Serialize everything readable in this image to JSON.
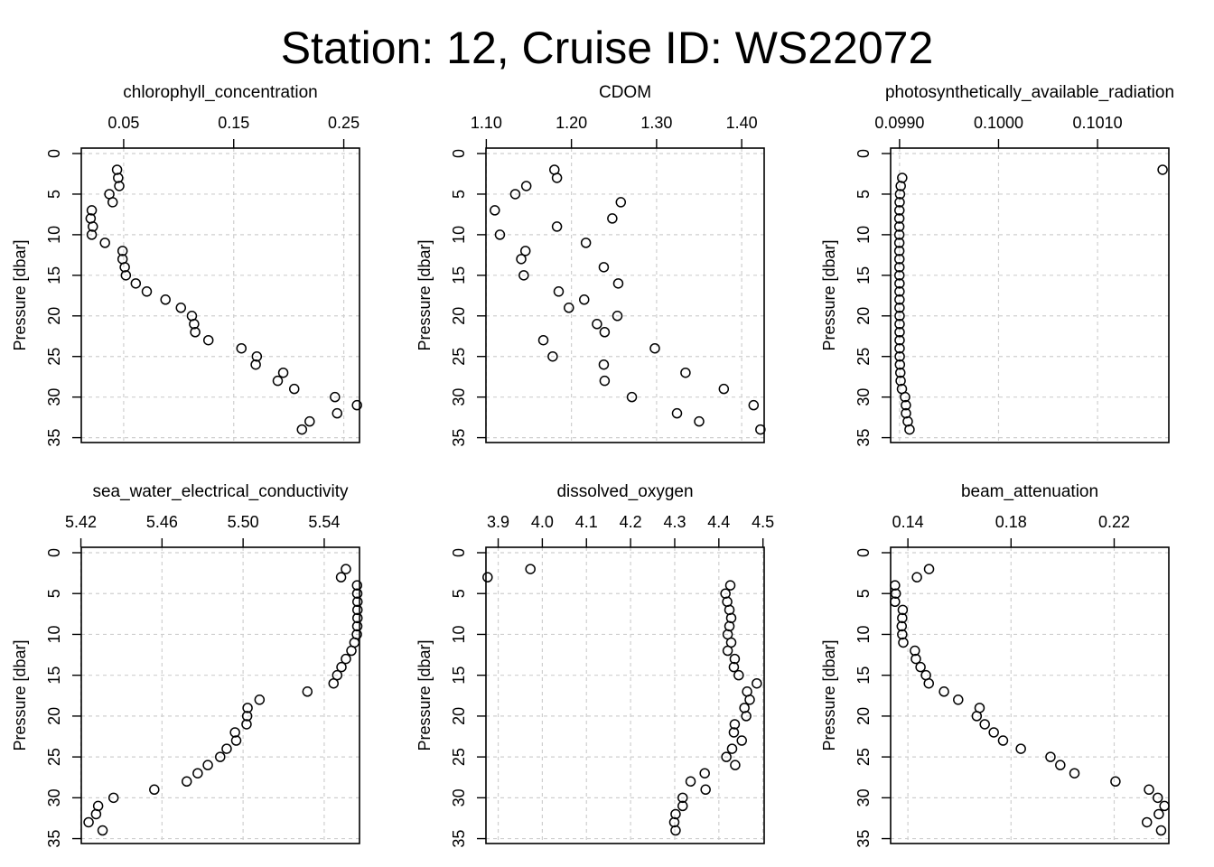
{
  "figure": {
    "title": "Station: 12, Cruise ID: WS22072"
  },
  "chart_data": [
    {
      "type": "scatter",
      "title": "chlorophyll_concentration",
      "xlabel": "",
      "ylabel": "Pressure [dbar]",
      "xlim": [
        0.0115,
        0.2643
      ],
      "xticks": [
        0.05,
        0.15,
        0.25
      ],
      "xtick_labels": [
        "0.05",
        "0.15",
        "0.25"
      ],
      "ylim": [
        35,
        0
      ],
      "yticks": [
        0,
        5,
        10,
        15,
        20,
        25,
        30,
        35
      ],
      "grid": true,
      "y_reversed": true,
      "x_axis_position": "top",
      "points": [
        [
          0.044,
          2
        ],
        [
          0.045,
          3
        ],
        [
          0.046,
          4
        ],
        [
          0.037,
          5
        ],
        [
          0.04,
          6
        ],
        [
          0.021,
          7
        ],
        [
          0.02,
          8
        ],
        [
          0.022,
          9
        ],
        [
          0.021,
          10
        ],
        [
          0.033,
          11
        ],
        [
          0.049,
          12
        ],
        [
          0.049,
          13
        ],
        [
          0.051,
          14
        ],
        [
          0.052,
          15
        ],
        [
          0.061,
          16
        ],
        [
          0.071,
          17
        ],
        [
          0.088,
          18
        ],
        [
          0.102,
          19
        ],
        [
          0.112,
          20
        ],
        [
          0.114,
          21
        ],
        [
          0.115,
          22
        ],
        [
          0.127,
          23
        ],
        [
          0.157,
          24
        ],
        [
          0.171,
          25
        ],
        [
          0.17,
          26
        ],
        [
          0.195,
          27
        ],
        [
          0.19,
          28
        ],
        [
          0.205,
          29
        ],
        [
          0.242,
          30
        ],
        [
          0.262,
          31
        ],
        [
          0.244,
          32
        ],
        [
          0.219,
          33
        ],
        [
          0.212,
          34
        ]
      ]
    },
    {
      "type": "scatter",
      "title": "CDOM",
      "xlabel": "",
      "ylabel": "Pressure [dbar]",
      "xlim": [
        1.0996,
        1.4264
      ],
      "xticks": [
        1.1,
        1.2,
        1.3,
        1.4
      ],
      "xtick_labels": [
        "1.10",
        "1.20",
        "1.30",
        "1.40"
      ],
      "ylim": [
        35,
        0
      ],
      "yticks": [
        0,
        5,
        10,
        15,
        20,
        25,
        30,
        35
      ],
      "grid": true,
      "y_reversed": true,
      "x_axis_position": "top",
      "points": [
        [
          1.18,
          2
        ],
        [
          1.183,
          3
        ],
        [
          1.147,
          4
        ],
        [
          1.134,
          5
        ],
        [
          1.258,
          6
        ],
        [
          1.11,
          7
        ],
        [
          1.248,
          8
        ],
        [
          1.183,
          9
        ],
        [
          1.116,
          10
        ],
        [
          1.217,
          11
        ],
        [
          1.146,
          12
        ],
        [
          1.141,
          13
        ],
        [
          1.238,
          14
        ],
        [
          1.144,
          15
        ],
        [
          1.255,
          16
        ],
        [
          1.185,
          17
        ],
        [
          1.215,
          18
        ],
        [
          1.197,
          19
        ],
        [
          1.254,
          20
        ],
        [
          1.23,
          21
        ],
        [
          1.239,
          22
        ],
        [
          1.167,
          23
        ],
        [
          1.298,
          24
        ],
        [
          1.178,
          25
        ],
        [
          1.238,
          26
        ],
        [
          1.334,
          27
        ],
        [
          1.239,
          28
        ],
        [
          1.379,
          29
        ],
        [
          1.271,
          30
        ],
        [
          1.414,
          31
        ],
        [
          1.324,
          32
        ],
        [
          1.35,
          33
        ],
        [
          1.422,
          34
        ]
      ]
    },
    {
      "type": "scatter",
      "title": "photosynthetically_available_radiation",
      "xlabel": "",
      "ylabel": "Pressure [dbar]",
      "xlim": [
        0.09891,
        0.10172
      ],
      "xticks": [
        0.099,
        0.1,
        0.101
      ],
      "xtick_labels": [
        "0.0990",
        "0.1000",
        "0.1010"
      ],
      "ylim": [
        35,
        0
      ],
      "yticks": [
        0,
        5,
        10,
        15,
        20,
        25,
        30,
        35
      ],
      "grid": true,
      "y_reversed": true,
      "x_axis_position": "top",
      "points": [
        [
          0.101657,
          2
        ],
        [
          0.099027,
          3
        ],
        [
          0.099012,
          4
        ],
        [
          0.099005,
          5
        ],
        [
          0.099001,
          6
        ],
        [
          0.098999,
          7
        ],
        [
          0.098998,
          8
        ],
        [
          0.098998,
          9
        ],
        [
          0.098998,
          10
        ],
        [
          0.098998,
          11
        ],
        [
          0.098998,
          12
        ],
        [
          0.098999,
          13
        ],
        [
          0.098999,
          14
        ],
        [
          0.098999,
          15
        ],
        [
          0.099,
          16
        ],
        [
          0.099,
          17
        ],
        [
          0.099,
          18
        ],
        [
          0.099,
          19
        ],
        [
          0.099001,
          20
        ],
        [
          0.099001,
          21
        ],
        [
          0.099001,
          22
        ],
        [
          0.099001,
          23
        ],
        [
          0.099001,
          24
        ],
        [
          0.099002,
          25
        ],
        [
          0.099004,
          26
        ],
        [
          0.099008,
          27
        ],
        [
          0.099011,
          28
        ],
        [
          0.099024,
          29
        ],
        [
          0.099056,
          30
        ],
        [
          0.099064,
          31
        ],
        [
          0.099065,
          32
        ],
        [
          0.099083,
          33
        ],
        [
          0.099101,
          34
        ]
      ]
    },
    {
      "type": "scatter",
      "title": "sea_water_electrical_conductivity",
      "xlabel": "",
      "ylabel": "Pressure [dbar]",
      "xlim": [
        5.4202,
        5.5574
      ],
      "xticks": [
        5.42,
        5.46,
        5.5,
        5.54
      ],
      "xtick_labels": [
        "5.42",
        "5.46",
        "5.50",
        "5.54"
      ],
      "ylim": [
        35,
        0
      ],
      "yticks": [
        0,
        5,
        10,
        15,
        20,
        25,
        30,
        35
      ],
      "grid": true,
      "y_reversed": true,
      "x_axis_position": "top",
      "points": [
        [
          5.5507,
          2
        ],
        [
          5.5483,
          3
        ],
        [
          5.5562,
          4
        ],
        [
          5.5563,
          5
        ],
        [
          5.5564,
          6
        ],
        [
          5.5564,
          7
        ],
        [
          5.5564,
          8
        ],
        [
          5.5563,
          9
        ],
        [
          5.5561,
          10
        ],
        [
          5.5549,
          11
        ],
        [
          5.5534,
          12
        ],
        [
          5.5507,
          13
        ],
        [
          5.5485,
          14
        ],
        [
          5.5464,
          15
        ],
        [
          5.5446,
          16
        ],
        [
          5.5317,
          17
        ],
        [
          5.5081,
          18
        ],
        [
          5.5022,
          19
        ],
        [
          5.502,
          20
        ],
        [
          5.5017,
          21
        ],
        [
          5.496,
          22
        ],
        [
          5.4966,
          23
        ],
        [
          5.4919,
          24
        ],
        [
          5.4887,
          25
        ],
        [
          5.4826,
          26
        ],
        [
          5.4776,
          27
        ],
        [
          5.4722,
          28
        ],
        [
          5.4562,
          29
        ],
        [
          5.4361,
          30
        ],
        [
          5.4285,
          31
        ],
        [
          5.4275,
          32
        ],
        [
          5.4238,
          33
        ],
        [
          5.4307,
          34
        ]
      ]
    },
    {
      "type": "scatter",
      "title": "dissolved_oxygen",
      "xlabel": "",
      "ylabel": "Pressure [dbar]",
      "xlim": [
        3.8723,
        4.5027
      ],
      "xticks": [
        3.9,
        4.0,
        4.1,
        4.2,
        4.3,
        4.4,
        4.5
      ],
      "xtick_labels": [
        "3.9",
        "4.0",
        "4.1",
        "4.2",
        "4.3",
        "4.4",
        "4.5"
      ],
      "ylim": [
        35,
        0
      ],
      "yticks": [
        0,
        5,
        10,
        15,
        20,
        25,
        30,
        35
      ],
      "grid": true,
      "y_reversed": true,
      "x_axis_position": "top",
      "points": [
        [
          3.973,
          2
        ],
        [
          3.876,
          3
        ],
        [
          4.426,
          4
        ],
        [
          4.415,
          5
        ],
        [
          4.419,
          6
        ],
        [
          4.424,
          7
        ],
        [
          4.428,
          8
        ],
        [
          4.424,
          9
        ],
        [
          4.42,
          10
        ],
        [
          4.428,
          11
        ],
        [
          4.42,
          12
        ],
        [
          4.436,
          13
        ],
        [
          4.434,
          14
        ],
        [
          4.445,
          15
        ],
        [
          4.486,
          16
        ],
        [
          4.464,
          17
        ],
        [
          4.47,
          18
        ],
        [
          4.458,
          19
        ],
        [
          4.462,
          20
        ],
        [
          4.436,
          21
        ],
        [
          4.434,
          22
        ],
        [
          4.452,
          23
        ],
        [
          4.43,
          24
        ],
        [
          4.417,
          25
        ],
        [
          4.437,
          26
        ],
        [
          4.368,
          27
        ],
        [
          4.336,
          28
        ],
        [
          4.37,
          29
        ],
        [
          4.318,
          30
        ],
        [
          4.318,
          31
        ],
        [
          4.302,
          32
        ],
        [
          4.299,
          33
        ],
        [
          4.302,
          34
        ]
      ]
    },
    {
      "type": "scatter",
      "title": "beam_attenuation",
      "xlabel": "",
      "ylabel": "Pressure [dbar]",
      "xlim": [
        0.1333,
        0.2412
      ],
      "xticks": [
        0.14,
        0.18,
        0.22
      ],
      "xtick_labels": [
        "0.14",
        "0.18",
        "0.22"
      ],
      "ylim": [
        35,
        0
      ],
      "yticks": [
        0,
        5,
        10,
        15,
        20,
        25,
        30,
        35
      ],
      "grid": true,
      "y_reversed": true,
      "x_axis_position": "top",
      "points": [
        [
          0.1482,
          2
        ],
        [
          0.1435,
          3
        ],
        [
          0.135,
          4
        ],
        [
          0.1353,
          5
        ],
        [
          0.135,
          6
        ],
        [
          0.138,
          7
        ],
        [
          0.1378,
          8
        ],
        [
          0.1376,
          9
        ],
        [
          0.1378,
          10
        ],
        [
          0.1382,
          11
        ],
        [
          0.1427,
          12
        ],
        [
          0.1431,
          13
        ],
        [
          0.1449,
          14
        ],
        [
          0.147,
          15
        ],
        [
          0.1481,
          16
        ],
        [
          0.154,
          17
        ],
        [
          0.1595,
          18
        ],
        [
          0.1678,
          19
        ],
        [
          0.1667,
          20
        ],
        [
          0.1698,
          21
        ],
        [
          0.1733,
          22
        ],
        [
          0.1769,
          23
        ],
        [
          0.1838,
          24
        ],
        [
          0.1953,
          25
        ],
        [
          0.1991,
          26
        ],
        [
          0.2046,
          27
        ],
        [
          0.2205,
          28
        ],
        [
          0.2335,
          29
        ],
        [
          0.2369,
          30
        ],
        [
          0.2395,
          31
        ],
        [
          0.2373,
          32
        ],
        [
          0.2327,
          33
        ],
        [
          0.2382,
          34
        ]
      ]
    }
  ]
}
